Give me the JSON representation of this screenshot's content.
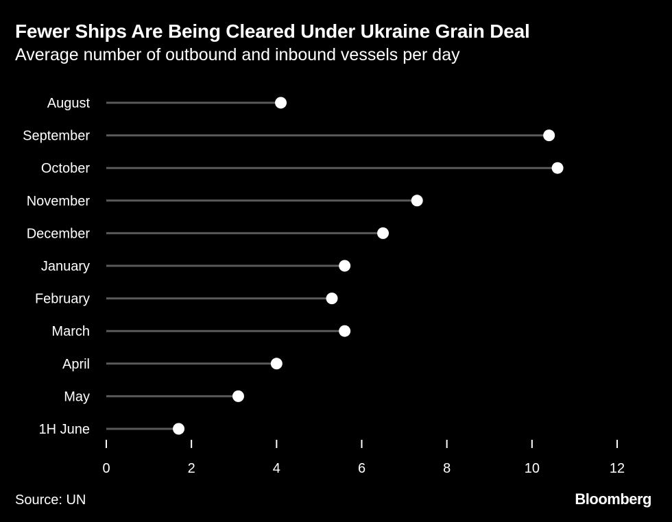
{
  "header": {
    "title": "Fewer Ships Are Being Cleared Under Ukraine Grain Deal",
    "subtitle": "Average number of outbound and inbound vessels per day"
  },
  "footer": {
    "source": "Source: UN",
    "brand": "Bloomberg"
  },
  "colors": {
    "background": "#000000",
    "text": "#ffffff",
    "stem": "#5a5a5a",
    "dot": "#ffffff"
  },
  "chart_data": {
    "type": "lollipop",
    "orientation": "horizontal",
    "categories": [
      "August",
      "September",
      "October",
      "November",
      "December",
      "January",
      "February",
      "March",
      "April",
      "May",
      "1H June"
    ],
    "values": [
      4.1,
      10.4,
      10.6,
      7.3,
      6.5,
      5.6,
      5.3,
      5.6,
      4.0,
      3.1,
      1.7
    ],
    "xlim": [
      0,
      12
    ],
    "xticks": [
      0,
      2,
      4,
      6,
      8,
      10,
      12
    ],
    "grid": false
  }
}
